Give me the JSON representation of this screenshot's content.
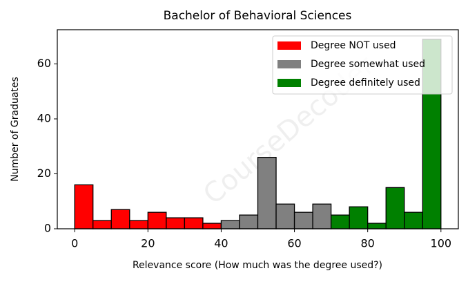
{
  "chart_data": {
    "type": "histogram",
    "title": "Bachelor of Behavioral Sciences",
    "xlabel": "Relevance score (How much was the degree used?)",
    "ylabel": "Number of Graduates",
    "watermark": "CourseDecoder",
    "series": [
      {
        "name": "Degree NOT used",
        "color": "#ff0000",
        "bins": [
          0,
          5,
          10,
          15,
          20,
          25,
          30,
          35,
          40
        ],
        "values": [
          16,
          3,
          7,
          3,
          6,
          4,
          4,
          2
        ]
      },
      {
        "name": "Degree somewhat used",
        "color": "#808080",
        "bins": [
          40,
          45,
          50,
          55,
          60,
          65,
          70
        ],
        "values": [
          3,
          5,
          26,
          9,
          6,
          9
        ]
      },
      {
        "name": "Degree definitely used",
        "color": "#008000",
        "bins": [
          70,
          75,
          80,
          85,
          90,
          95,
          100
        ],
        "values": [
          5,
          8,
          2,
          15,
          6,
          69
        ]
      }
    ],
    "xlim": [
      -4.75,
      104.75
    ],
    "ylim": [
      0,
      72.45
    ],
    "xticks": [
      0,
      20,
      40,
      60,
      80,
      100
    ],
    "yticks": [
      0,
      20,
      40,
      60
    ],
    "legend": "upper right"
  }
}
